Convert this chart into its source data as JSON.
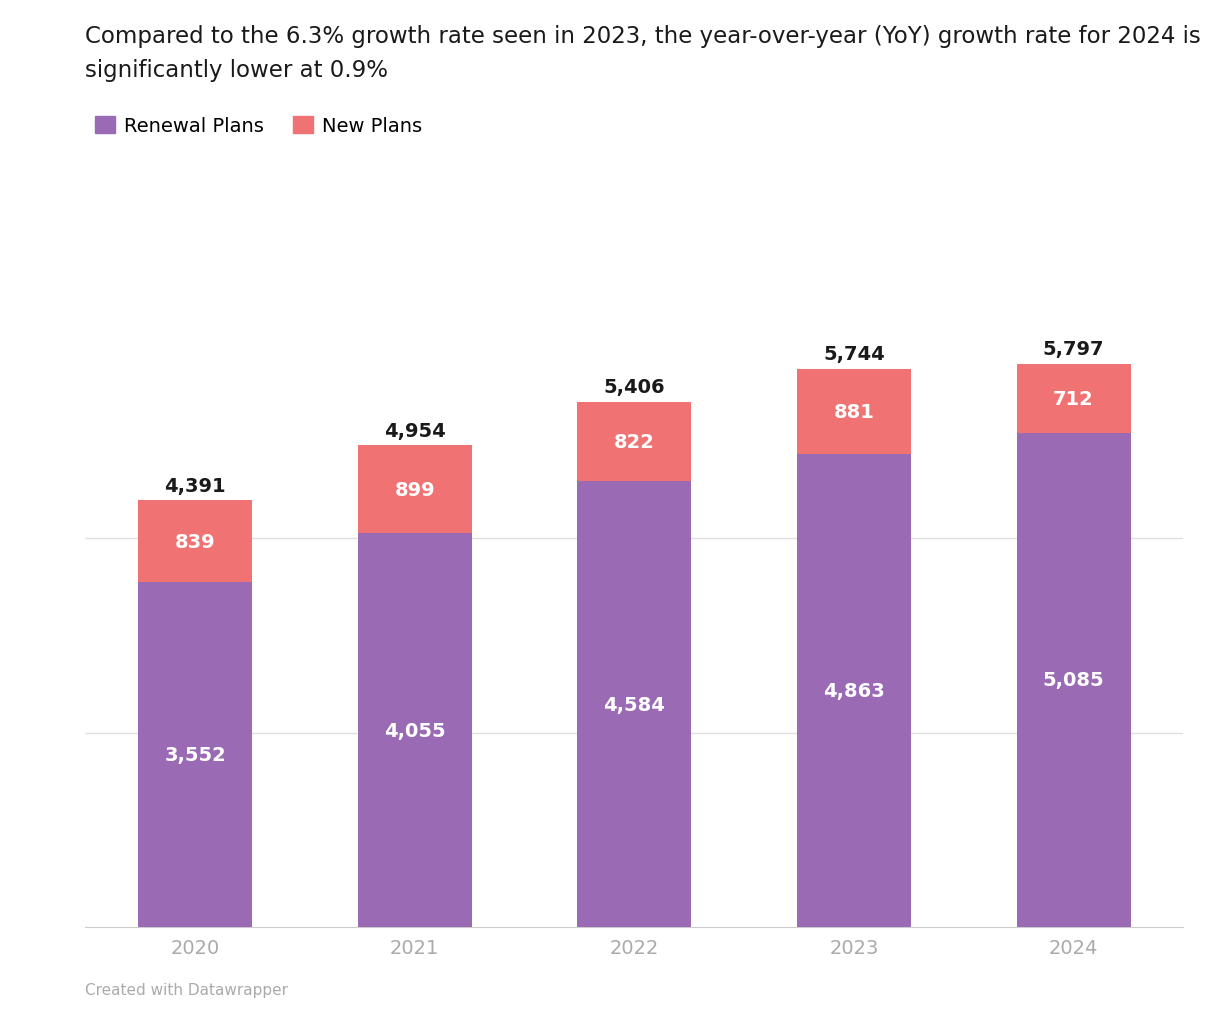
{
  "title_line1": "Compared to the 6.3% growth rate seen in 2023, the year-over-year (YoY) growth rate for 2024 is",
  "title_line2": "significantly lower at 0.9%",
  "years": [
    "2020",
    "2021",
    "2022",
    "2023",
    "2024"
  ],
  "renewal_plans": [
    3552,
    4055,
    4584,
    4863,
    5085
  ],
  "new_plans": [
    839,
    899,
    822,
    881,
    712
  ],
  "totals": [
    4391,
    4954,
    5406,
    5744,
    5797
  ],
  "renewal_color": "#9b6ab5",
  "new_color": "#f07272",
  "background_color": "#ffffff",
  "title_fontsize": 16.5,
  "label_fontsize": 14,
  "tick_fontsize": 14,
  "legend_fontsize": 14,
  "footer_text": "Created with Datawrapper",
  "inner_label_color": "#ffffff",
  "total_label_color": "#1a1a1a",
  "gridline_color": "#e0e0e0",
  "tick_color": "#aaaaaa",
  "bar_width": 0.52
}
